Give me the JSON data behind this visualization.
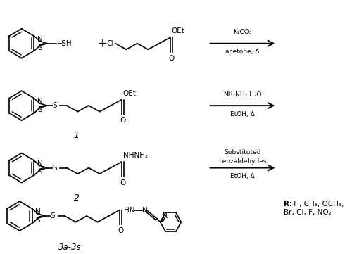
{
  "background": "#ffffff",
  "reaction1_reagents": "K₂CO₃",
  "reaction1_conditions": "acetone, Δ",
  "reaction2_reagents": "NH₂NH₂.H₂O",
  "reaction2_conditions": "EtOH, Δ",
  "reaction3_reagent1": "Substituted",
  "reaction3_reagent2": "benzaldehydes",
  "reaction3_conditions": "EtOH, Δ",
  "compound1_label": "1",
  "compound2_label": "2",
  "compound3_label": "3a-3s",
  "R_bold": "R:",
  "R_text": " H, CH₃, OCH₃,",
  "R_text2": "Br, Cl, F, NO₂"
}
